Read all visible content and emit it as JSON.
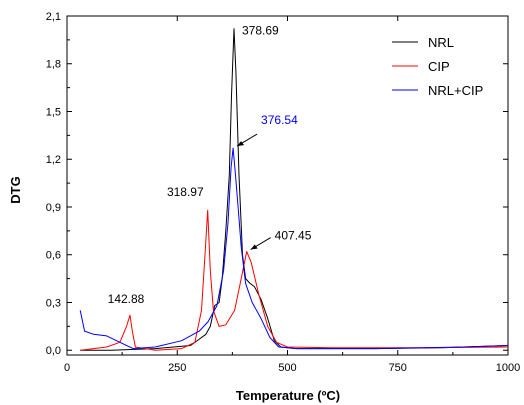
{
  "chart_data": {
    "type": "line",
    "xlabel": "Temperature (ºC)",
    "ylabel": "DTG",
    "xlim": [
      0,
      1000
    ],
    "ylim": [
      -0.03,
      2.1
    ],
    "x_ticks": [
      0,
      250,
      500,
      750,
      1000
    ],
    "x_tick_labels": [
      "0",
      "250",
      "500",
      "750",
      "1000"
    ],
    "y_ticks": [
      0.0,
      0.3,
      0.6,
      0.9,
      1.2,
      1.5,
      1.8,
      2.1
    ],
    "y_tick_labels": [
      "0,0",
      "0,3",
      "0,6",
      "0,9",
      "1,2",
      "1,5",
      "1,8",
      "2,1"
    ],
    "grid": false,
    "legend_position": "top-right",
    "series": [
      {
        "name": "NRL",
        "color": "#000000",
        "points": [
          [
            30,
            0.0
          ],
          [
            100,
            0.0
          ],
          [
            200,
            0.01
          ],
          [
            280,
            0.03
          ],
          [
            300,
            0.07
          ],
          [
            315,
            0.1
          ],
          [
            325,
            0.15
          ],
          [
            335,
            0.28
          ],
          [
            345,
            0.3
          ],
          [
            352,
            0.45
          ],
          [
            360,
            0.75
          ],
          [
            368,
            1.1
          ],
          [
            373,
            1.6
          ],
          [
            378.69,
            2.02
          ],
          [
            383,
            1.75
          ],
          [
            390,
            1.1
          ],
          [
            398,
            0.6
          ],
          [
            405,
            0.45
          ],
          [
            415,
            0.42
          ],
          [
            425,
            0.4
          ],
          [
            440,
            0.32
          ],
          [
            455,
            0.2
          ],
          [
            470,
            0.06
          ],
          [
            485,
            0.02
          ],
          [
            520,
            0.01
          ],
          [
            700,
            0.01
          ],
          [
            850,
            0.015
          ],
          [
            1000,
            0.03
          ]
        ]
      },
      {
        "name": "CIP",
        "color": "#ff0000",
        "points": [
          [
            30,
            0.0
          ],
          [
            90,
            0.02
          ],
          [
            120,
            0.05
          ],
          [
            135,
            0.15
          ],
          [
            142.88,
            0.22
          ],
          [
            148,
            0.12
          ],
          [
            155,
            0.02
          ],
          [
            200,
            0.0
          ],
          [
            260,
            0.01
          ],
          [
            290,
            0.05
          ],
          [
            305,
            0.25
          ],
          [
            313,
            0.6
          ],
          [
            318.97,
            0.88
          ],
          [
            325,
            0.5
          ],
          [
            332,
            0.25
          ],
          [
            345,
            0.15
          ],
          [
            360,
            0.16
          ],
          [
            380,
            0.25
          ],
          [
            395,
            0.45
          ],
          [
            407.45,
            0.62
          ],
          [
            418,
            0.55
          ],
          [
            435,
            0.35
          ],
          [
            455,
            0.15
          ],
          [
            475,
            0.05
          ],
          [
            500,
            0.02
          ],
          [
            600,
            0.015
          ],
          [
            800,
            0.015
          ],
          [
            1000,
            0.02
          ]
        ]
      },
      {
        "name": "NRL+CIP",
        "color": "#0000ff",
        "points": [
          [
            30,
            0.25
          ],
          [
            40,
            0.12
          ],
          [
            60,
            0.1
          ],
          [
            90,
            0.09
          ],
          [
            120,
            0.05
          ],
          [
            150,
            0.01
          ],
          [
            200,
            0.02
          ],
          [
            260,
            0.06
          ],
          [
            300,
            0.12
          ],
          [
            320,
            0.18
          ],
          [
            340,
            0.28
          ],
          [
            355,
            0.5
          ],
          [
            365,
            0.8
          ],
          [
            372,
            1.15
          ],
          [
            376.54,
            1.27
          ],
          [
            382,
            1.1
          ],
          [
            388,
            0.9
          ],
          [
            395,
            0.65
          ],
          [
            405,
            0.42
          ],
          [
            420,
            0.3
          ],
          [
            440,
            0.2
          ],
          [
            460,
            0.08
          ],
          [
            480,
            0.02
          ],
          [
            520,
            0.01
          ],
          [
            700,
            0.01
          ],
          [
            900,
            0.02
          ],
          [
            1000,
            0.03
          ]
        ]
      }
    ],
    "annotations": [
      {
        "text": "378.69",
        "x": 378.69,
        "y": 2.02,
        "color": "#000000",
        "arrow": false
      },
      {
        "text": "376.54",
        "x": 376.54,
        "y": 1.27,
        "color": "#0000ff",
        "arrow": true
      },
      {
        "text": "318.97",
        "x": 318.97,
        "y": 0.88,
        "color": "#000000",
        "arrow": false
      },
      {
        "text": "407.45",
        "x": 407.45,
        "y": 0.62,
        "color": "#000000",
        "arrow": true
      },
      {
        "text": "142.88",
        "x": 142.88,
        "y": 0.22,
        "color": "#000000",
        "arrow": false
      }
    ]
  }
}
